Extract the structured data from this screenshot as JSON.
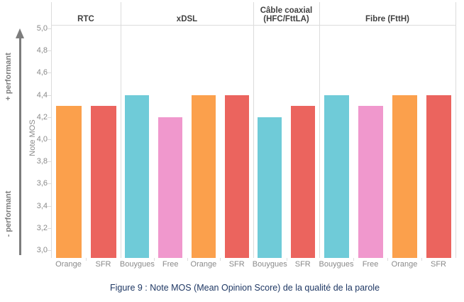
{
  "figure": {
    "caption": "Figure 9 : Note MOS (Mean Opinion Score) de la qualité de la parole"
  },
  "chart_data": {
    "type": "bar",
    "title": "",
    "ylabel": "Note MOS",
    "ylim": [
      3.0,
      5.0
    ],
    "ytick_step": 0.2,
    "ytick_labels": [
      "5,0",
      "4,8",
      "4,6",
      "4,4",
      "4,2",
      "4,0",
      "3,8",
      "3,6",
      "3,4",
      "3,2",
      "3,0"
    ],
    "grid": "panel-separators-only",
    "legend": "none",
    "panels": [
      {
        "label": "RTC",
        "categories": [
          "Orange",
          "SFR"
        ],
        "values": [
          4.3,
          4.3
        ]
      },
      {
        "label": "xDSL",
        "categories": [
          "Bouygues",
          "Free",
          "Orange",
          "SFR"
        ],
        "values": [
          4.4,
          4.2,
          4.4,
          4.4
        ]
      },
      {
        "label": "Câble coaxial\n(HFC/FttLA)",
        "categories": [
          "Bouygues",
          "SFR"
        ],
        "values": [
          4.2,
          4.3
        ]
      },
      {
        "label": "Fibre (FttH)",
        "categories": [
          "Bouygues",
          "Free",
          "Orange",
          "SFR"
        ],
        "values": [
          4.4,
          4.3,
          4.4,
          4.4
        ]
      }
    ],
    "series_colors": {
      "Orange": "#FBA04C",
      "SFR": "#EB645E",
      "Bouygues": "#6FCBD8",
      "Free": "#F098CD"
    },
    "annotations": {
      "more_performant": "+ performant",
      "less_performant": "- performant"
    }
  }
}
